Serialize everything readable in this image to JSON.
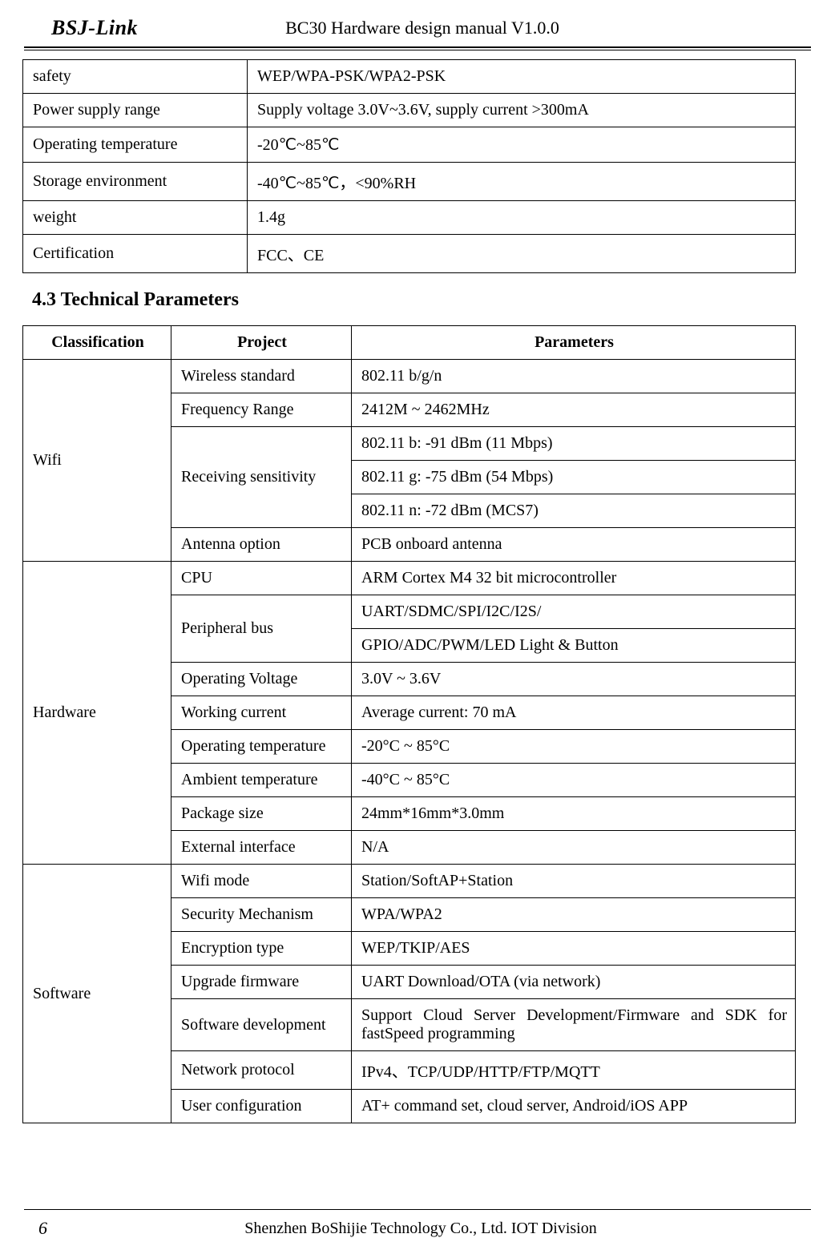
{
  "header": {
    "logo": "BSJ-Link",
    "title": "BC30 Hardware design manual V1.0.0"
  },
  "table1": {
    "rows": [
      [
        "safety",
        "WEP/WPA-PSK/WPA2-PSK"
      ],
      [
        "Power supply range",
        "Supply voltage 3.0V~3.6V, supply current >300mA"
      ],
      [
        "Operating temperature",
        "-20℃~85℃"
      ],
      [
        "Storage environment",
        "-40℃~85℃，<90%RH"
      ],
      [
        "weight",
        "1.4g"
      ],
      [
        "Certification",
        "FCC、CE"
      ]
    ]
  },
  "section_heading": "4.3 Technical Parameters",
  "table2": {
    "headers": [
      "Classification",
      "Project",
      "Parameters"
    ],
    "wifi": {
      "label": "Wifi",
      "r1": [
        "Wireless standard",
        "802.11 b/g/n"
      ],
      "r2": [
        "Frequency Range",
        "2412M ~ 2462MHz"
      ],
      "recv_label": "Receiving sensitivity",
      "recv": [
        "802.11 b: -91 dBm (11 Mbps)",
        "802.11 g: -75 dBm (54 Mbps)",
        "802.11 n: -72 dBm (MCS7)"
      ],
      "r6": [
        "Antenna option",
        "PCB onboard antenna"
      ]
    },
    "hardware": {
      "label": "Hardware",
      "r1": [
        "CPU",
        "ARM Cortex M4 32 bit microcontroller"
      ],
      "pbus_label": "Peripheral bus",
      "pbus": [
        "UART/SDMC/SPI/I2C/I2S/",
        "GPIO/ADC/PWM/LED Light & Button"
      ],
      "r4": [
        "Operating Voltage",
        "3.0V ~ 3.6V"
      ],
      "r5": [
        "Working current",
        "Average current: 70 mA"
      ],
      "r6": [
        "Operating temperature",
        "-20°C ~ 85°C"
      ],
      "r7": [
        "Ambient temperature",
        "-40°C ~ 85°C"
      ],
      "r8": [
        "Package size",
        "24mm*16mm*3.0mm"
      ],
      "r9": [
        "External interface",
        "N/A"
      ]
    },
    "software": {
      "label": "Software",
      "r1": [
        "Wifi mode",
        "Station/SoftAP+Station"
      ],
      "r2": [
        "Security Mechanism",
        "WPA/WPA2"
      ],
      "r3": [
        "Encryption type",
        "WEP/TKIP/AES"
      ],
      "r4": [
        "Upgrade firmware",
        "UART Download/OTA (via network)"
      ],
      "r5": [
        "Software development",
        "Support Cloud Server Development/Firmware and SDK for fastSpeed programming"
      ],
      "r6": [
        "Network protocol",
        "IPv4、TCP/UDP/HTTP/FTP/MQTT"
      ],
      "r7": [
        "User configuration",
        "AT+ command set, cloud server, Android/iOS APP"
      ]
    }
  },
  "footer": {
    "page": "6",
    "text": "Shenzhen BoShijie Technology Co., Ltd. IOT Division"
  }
}
